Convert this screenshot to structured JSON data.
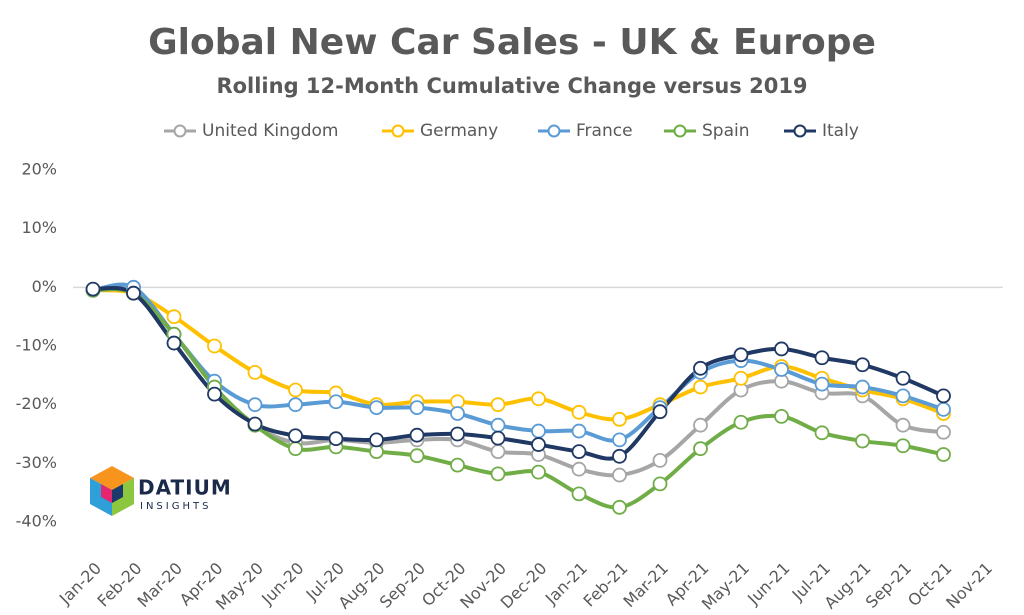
{
  "chart_data": {
    "type": "line",
    "title": "Global New Car Sales - UK & Europe",
    "subtitle": "Rolling 12-Month Cumulative Change versus 2019",
    "logo": {
      "name": "DATIUM",
      "tagline": "INSIGHTS"
    },
    "categories": [
      "Jan-20",
      "Feb-20",
      "Mar-20",
      "Apr-20",
      "May-20",
      "Jun-20",
      "Jul-20",
      "Aug-20",
      "Sep-20",
      "Oct-20",
      "Nov-20",
      "Dec-20",
      "Jan-21",
      "Feb-21",
      "Mar-21",
      "Apr-21",
      "May-21",
      "Jun-21",
      "Jul-21",
      "Aug-21",
      "Sep-21",
      "Oct-21",
      "Nov-21"
    ],
    "series": [
      {
        "name": "United Kingdom",
        "color": "#a6a6a6",
        "values": [
          -0.5,
          0,
          -8,
          -17,
          -23.5,
          -26.5,
          -26,
          -26.5,
          -26,
          -26,
          -28,
          -28.5,
          -31,
          -32,
          -29.5,
          -23.5,
          -17.5,
          -16,
          -18,
          -18.5,
          -23.5,
          -24.7,
          null
        ]
      },
      {
        "name": "Germany",
        "color": "#ffc000",
        "values": [
          -0.5,
          -1,
          -5,
          -10,
          -14.5,
          -17.5,
          -18,
          -20,
          -19.5,
          -19.5,
          -20,
          -19,
          -21.3,
          -22.5,
          -20,
          -17,
          -15.5,
          -13.5,
          -15.5,
          -17.5,
          -19,
          -21.5,
          null
        ]
      },
      {
        "name": "France",
        "color": "#5b9bd5",
        "values": [
          -0.5,
          0,
          -8,
          -16,
          -20,
          -20,
          -19.5,
          -20.5,
          -20.5,
          -21.5,
          -23.5,
          -24.5,
          -24.5,
          -26,
          -20.5,
          -14.5,
          -12.5,
          -14,
          -16.5,
          -17,
          -18.5,
          -20.8,
          null
        ]
      },
      {
        "name": "Spain",
        "color": "#70ad47",
        "values": [
          -0.5,
          -1,
          -8,
          -17,
          -23.5,
          -27.5,
          -27.2,
          -28,
          -28.7,
          -30.3,
          -31.8,
          -31.5,
          -35.2,
          -37.5,
          -33.5,
          -27.5,
          -23,
          -22,
          -24.8,
          -26.2,
          -27,
          -28.5,
          null
        ]
      },
      {
        "name": "Italy",
        "color": "#203864",
        "values": [
          -0.3,
          -1,
          -9.5,
          -18.2,
          -23.3,
          -25.3,
          -25.8,
          -26,
          -25.2,
          -25,
          -25.7,
          -26.8,
          -28,
          -28.8,
          -21.2,
          -13.8,
          -11.5,
          -10.5,
          -12,
          -13.2,
          -15.5,
          -18.5,
          null
        ]
      }
    ],
    "ylim": [
      -40,
      20
    ],
    "yticks": [
      {
        "value": 20,
        "label": "20%"
      },
      {
        "value": 10,
        "label": "10%"
      },
      {
        "value": 0,
        "label": "0%"
      },
      {
        "value": -10,
        "label": "-10%"
      },
      {
        "value": -20,
        "label": "-20%"
      },
      {
        "value": -30,
        "label": "-30%"
      },
      {
        "value": -40,
        "label": "-40%"
      }
    ],
    "grid": false,
    "legend": "top"
  }
}
